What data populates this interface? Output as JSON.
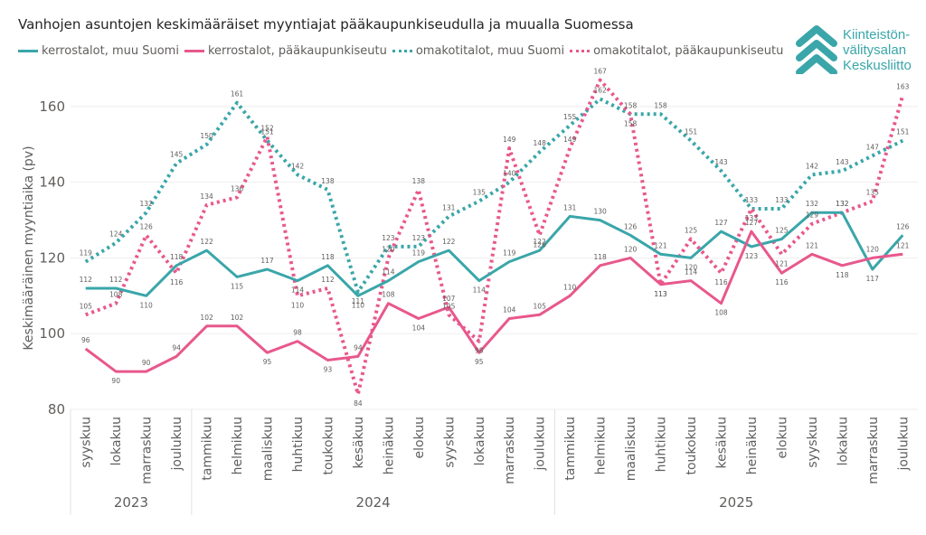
{
  "chart_data": {
    "type": "line",
    "title": "Vanhojen asuntojen keskimääräiset myyntiajat pääkaupunkiseudulla ja muualla Suomessa",
    "ylabel": "Keskimääräinen myyntiaika (pv)",
    "xlabel": "",
    "ylim": [
      80,
      170
    ],
    "yticks": [
      80,
      100,
      120,
      140,
      160
    ],
    "grid": true,
    "legend_position": "top-left",
    "categories": [
      "syyskuu",
      "lokakuu",
      "marraskuu",
      "joulukuu",
      "tammikuu",
      "helmikuu",
      "maaliskuu",
      "huhtikuu",
      "toukokuu",
      "kesäkuu",
      "heinäkuu",
      "elokuu",
      "syyskuu",
      "lokakuu",
      "marraskuu",
      "joulukuu",
      "tammikuu",
      "helmikuu",
      "maaliskuu",
      "huhtikuu",
      "toukokuu",
      "kesäkuu",
      "heinäkuu",
      "elokuu",
      "syyskuu",
      "lokakuu",
      "marraskuu",
      "joulukuu"
    ],
    "year_groups": [
      {
        "label": "2023",
        "count": 4
      },
      {
        "label": "2024",
        "count": 12
      },
      {
        "label": "2025",
        "count": 12
      }
    ],
    "series": [
      {
        "name": "kerrostalot, muu Suomi",
        "color": "#3aa6a9",
        "style": "solid",
        "values": [
          112,
          112,
          110,
          118,
          122,
          115,
          117,
          114,
          118,
          110,
          114,
          119,
          122,
          114,
          119,
          122,
          131,
          130,
          126,
          121,
          120,
          127,
          123,
          125,
          132,
          132,
          117,
          126
        ]
      },
      {
        "name": "kerrostalot, pääkaupunkiseutu",
        "color": "#e8588c",
        "style": "solid",
        "values": [
          96,
          90,
          90,
          94,
          102,
          102,
          95,
          98,
          93,
          94,
          108,
          104,
          107,
          95,
          104,
          105,
          110,
          118,
          120,
          113,
          114,
          108,
          127,
          116,
          121,
          118,
          120,
          121
        ]
      },
      {
        "name": "omakotitalot, muu Suomi",
        "color": "#3aa6a9",
        "style": "dotted",
        "values": [
          119,
          124,
          132,
          145,
          150,
          161,
          151,
          142,
          138,
          111,
          123,
          123,
          131,
          135,
          140,
          148,
          155,
          162,
          158,
          158,
          151,
          143,
          133,
          133,
          142,
          143,
          147,
          151
        ]
      },
      {
        "name": "omakotitalot, pääkaupunkiseutu",
        "color": "#e8588c",
        "style": "dotted",
        "values": [
          105,
          108,
          126,
          116,
          134,
          136,
          152,
          110,
          112,
          84,
          120,
          138,
          105,
          98,
          149,
          126,
          149,
          167,
          158,
          113,
          125,
          116,
          133,
          121,
          129,
          132,
          135,
          163
        ]
      }
    ]
  },
  "logo": {
    "lines": [
      "Kiinteistön-",
      "välitysalan",
      "Keskusliitto"
    ],
    "icon": "double-chevron-up-icon",
    "color": "#3aa6a9"
  }
}
